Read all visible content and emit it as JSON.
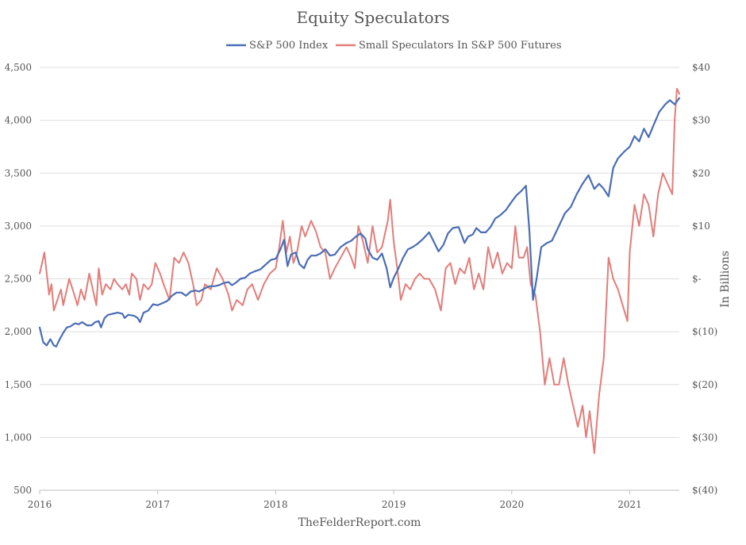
{
  "chart_data": {
    "type": "line",
    "title": "Equity Speculators",
    "source": "TheFelderReport.com",
    "ylabel_right": "In Billions",
    "x_ticks": [
      "2016",
      "2017",
      "2018",
      "2019",
      "2020",
      "2021"
    ],
    "xlim": [
      2016.0,
      2021.42
    ],
    "y_left": {
      "lim": [
        500,
        4500
      ],
      "ticks": [
        500,
        1000,
        1500,
        2000,
        2500,
        3000,
        3500,
        4000,
        4500
      ],
      "tick_labels": [
        "500",
        "1,000",
        "1,500",
        "2,000",
        "2,500",
        "3,000",
        "3,500",
        "4,000",
        "4,500"
      ]
    },
    "y_right": {
      "lim": [
        -40,
        40
      ],
      "ticks": [
        -40,
        -30,
        -20,
        -10,
        0,
        10,
        20,
        30,
        40
      ],
      "tick_labels": [
        "$(40)",
        "$(30)",
        "$(20)",
        "$(10)",
        "$-",
        "$10",
        "$20",
        "$30",
        "$40"
      ]
    },
    "gridlines": true,
    "legend_position": "top-center",
    "series": [
      {
        "name": "S&P 500 Index",
        "axis": "left",
        "color": "#4a6db5",
        "points": [
          [
            2016.0,
            2040
          ],
          [
            2016.03,
            1900
          ],
          [
            2016.06,
            1870
          ],
          [
            2016.09,
            1930
          ],
          [
            2016.12,
            1870
          ],
          [
            2016.14,
            1860
          ],
          [
            2016.17,
            1930
          ],
          [
            2016.2,
            1990
          ],
          [
            2016.23,
            2040
          ],
          [
            2016.26,
            2050
          ],
          [
            2016.3,
            2080
          ],
          [
            2016.33,
            2070
          ],
          [
            2016.36,
            2090
          ],
          [
            2016.4,
            2060
          ],
          [
            2016.44,
            2060
          ],
          [
            2016.47,
            2090
          ],
          [
            2016.5,
            2100
          ],
          [
            2016.52,
            2040
          ],
          [
            2016.55,
            2130
          ],
          [
            2016.58,
            2160
          ],
          [
            2016.62,
            2170
          ],
          [
            2016.66,
            2180
          ],
          [
            2016.7,
            2170
          ],
          [
            2016.72,
            2130
          ],
          [
            2016.75,
            2160
          ],
          [
            2016.8,
            2150
          ],
          [
            2016.83,
            2130
          ],
          [
            2016.85,
            2090
          ],
          [
            2016.88,
            2180
          ],
          [
            2016.92,
            2200
          ],
          [
            2016.96,
            2260
          ],
          [
            2017.0,
            2250
          ],
          [
            2017.04,
            2270
          ],
          [
            2017.08,
            2290
          ],
          [
            2017.12,
            2340
          ],
          [
            2017.16,
            2370
          ],
          [
            2017.2,
            2370
          ],
          [
            2017.24,
            2340
          ],
          [
            2017.28,
            2380
          ],
          [
            2017.32,
            2390
          ],
          [
            2017.35,
            2380
          ],
          [
            2017.4,
            2410
          ],
          [
            2017.44,
            2430
          ],
          [
            2017.48,
            2430
          ],
          [
            2017.52,
            2440
          ],
          [
            2017.56,
            2460
          ],
          [
            2017.6,
            2470
          ],
          [
            2017.63,
            2440
          ],
          [
            2017.67,
            2470
          ],
          [
            2017.7,
            2500
          ],
          [
            2017.74,
            2510
          ],
          [
            2017.78,
            2550
          ],
          [
            2017.82,
            2570
          ],
          [
            2017.87,
            2590
          ],
          [
            2017.92,
            2640
          ],
          [
            2017.96,
            2680
          ],
          [
            2018.0,
            2690
          ],
          [
            2018.04,
            2780
          ],
          [
            2018.07,
            2870
          ],
          [
            2018.1,
            2620
          ],
          [
            2018.13,
            2730
          ],
          [
            2018.17,
            2750
          ],
          [
            2018.2,
            2640
          ],
          [
            2018.24,
            2600
          ],
          [
            2018.27,
            2680
          ],
          [
            2018.3,
            2720
          ],
          [
            2018.34,
            2720
          ],
          [
            2018.38,
            2740
          ],
          [
            2018.42,
            2780
          ],
          [
            2018.46,
            2720
          ],
          [
            2018.5,
            2730
          ],
          [
            2018.55,
            2800
          ],
          [
            2018.6,
            2840
          ],
          [
            2018.64,
            2860
          ],
          [
            2018.68,
            2900
          ],
          [
            2018.72,
            2930
          ],
          [
            2018.76,
            2880
          ],
          [
            2018.78,
            2780
          ],
          [
            2018.82,
            2700
          ],
          [
            2018.86,
            2680
          ],
          [
            2018.9,
            2740
          ],
          [
            2018.94,
            2600
          ],
          [
            2018.97,
            2420
          ],
          [
            2019.0,
            2510
          ],
          [
            2019.04,
            2600
          ],
          [
            2019.08,
            2700
          ],
          [
            2019.12,
            2780
          ],
          [
            2019.16,
            2800
          ],
          [
            2019.2,
            2830
          ],
          [
            2019.25,
            2880
          ],
          [
            2019.3,
            2940
          ],
          [
            2019.34,
            2850
          ],
          [
            2019.38,
            2760
          ],
          [
            2019.42,
            2820
          ],
          [
            2019.46,
            2930
          ],
          [
            2019.5,
            2980
          ],
          [
            2019.55,
            2990
          ],
          [
            2019.6,
            2840
          ],
          [
            2019.63,
            2900
          ],
          [
            2019.67,
            2920
          ],
          [
            2019.7,
            2980
          ],
          [
            2019.74,
            2940
          ],
          [
            2019.78,
            2940
          ],
          [
            2019.82,
            2990
          ],
          [
            2019.86,
            3070
          ],
          [
            2019.9,
            3100
          ],
          [
            2019.95,
            3150
          ],
          [
            2020.0,
            3230
          ],
          [
            2020.04,
            3290
          ],
          [
            2020.08,
            3330
          ],
          [
            2020.12,
            3380
          ],
          [
            2020.15,
            2950
          ],
          [
            2020.18,
            2300
          ],
          [
            2020.21,
            2500
          ],
          [
            2020.25,
            2800
          ],
          [
            2020.3,
            2840
          ],
          [
            2020.34,
            2860
          ],
          [
            2020.4,
            3000
          ],
          [
            2020.45,
            3120
          ],
          [
            2020.5,
            3180
          ],
          [
            2020.55,
            3300
          ],
          [
            2020.6,
            3400
          ],
          [
            2020.65,
            3480
          ],
          [
            2020.7,
            3350
          ],
          [
            2020.74,
            3400
          ],
          [
            2020.78,
            3350
          ],
          [
            2020.82,
            3280
          ],
          [
            2020.86,
            3550
          ],
          [
            2020.9,
            3640
          ],
          [
            2020.95,
            3700
          ],
          [
            2021.0,
            3750
          ],
          [
            2021.04,
            3850
          ],
          [
            2021.08,
            3800
          ],
          [
            2021.12,
            3920
          ],
          [
            2021.16,
            3840
          ],
          [
            2021.2,
            3950
          ],
          [
            2021.25,
            4080
          ],
          [
            2021.3,
            4150
          ],
          [
            2021.34,
            4190
          ],
          [
            2021.38,
            4150
          ],
          [
            2021.42,
            4210
          ]
        ]
      },
      {
        "name": "Small Speculators In S&P 500 Futures",
        "axis": "right",
        "color": "#e27d7a",
        "points": [
          [
            2016.0,
            1
          ],
          [
            2016.02,
            3
          ],
          [
            2016.04,
            5
          ],
          [
            2016.06,
            1
          ],
          [
            2016.08,
            -3
          ],
          [
            2016.1,
            -1
          ],
          [
            2016.12,
            -6
          ],
          [
            2016.15,
            -4
          ],
          [
            2016.18,
            -2
          ],
          [
            2016.2,
            -5
          ],
          [
            2016.22,
            -3
          ],
          [
            2016.25,
            0
          ],
          [
            2016.28,
            -2
          ],
          [
            2016.32,
            -5
          ],
          [
            2016.35,
            -2
          ],
          [
            2016.38,
            -4
          ],
          [
            2016.42,
            1
          ],
          [
            2016.46,
            -3
          ],
          [
            2016.48,
            -5
          ],
          [
            2016.5,
            2
          ],
          [
            2016.53,
            -3
          ],
          [
            2016.56,
            -1
          ],
          [
            2016.6,
            -2
          ],
          [
            2016.63,
            0
          ],
          [
            2016.66,
            -1
          ],
          [
            2016.7,
            -2
          ],
          [
            2016.73,
            -1
          ],
          [
            2016.76,
            -3
          ],
          [
            2016.78,
            1
          ],
          [
            2016.82,
            0
          ],
          [
            2016.85,
            -4
          ],
          [
            2016.88,
            -1
          ],
          [
            2016.92,
            -2
          ],
          [
            2016.95,
            -1
          ],
          [
            2016.98,
            3
          ],
          [
            2017.02,
            1
          ],
          [
            2017.05,
            -1
          ],
          [
            2017.1,
            -4
          ],
          [
            2017.14,
            4
          ],
          [
            2017.18,
            3
          ],
          [
            2017.22,
            5
          ],
          [
            2017.26,
            3
          ],
          [
            2017.3,
            -1
          ],
          [
            2017.33,
            -5
          ],
          [
            2017.37,
            -4
          ],
          [
            2017.4,
            -1
          ],
          [
            2017.45,
            -2
          ],
          [
            2017.5,
            2
          ],
          [
            2017.55,
            0
          ],
          [
            2017.6,
            -3
          ],
          [
            2017.63,
            -6
          ],
          [
            2017.67,
            -4
          ],
          [
            2017.72,
            -5
          ],
          [
            2017.76,
            -2
          ],
          [
            2017.8,
            -1
          ],
          [
            2017.85,
            -4
          ],
          [
            2017.9,
            -1
          ],
          [
            2017.95,
            1
          ],
          [
            2018.0,
            2
          ],
          [
            2018.03,
            6
          ],
          [
            2018.06,
            11
          ],
          [
            2018.09,
            5
          ],
          [
            2018.12,
            8
          ],
          [
            2018.15,
            3
          ],
          [
            2018.18,
            5
          ],
          [
            2018.22,
            10
          ],
          [
            2018.25,
            8
          ],
          [
            2018.3,
            11
          ],
          [
            2018.34,
            9
          ],
          [
            2018.38,
            6
          ],
          [
            2018.42,
            5
          ],
          [
            2018.46,
            0
          ],
          [
            2018.5,
            2
          ],
          [
            2018.55,
            4
          ],
          [
            2018.6,
            6
          ],
          [
            2018.64,
            4
          ],
          [
            2018.67,
            2
          ],
          [
            2018.7,
            10
          ],
          [
            2018.74,
            7
          ],
          [
            2018.78,
            3
          ],
          [
            2018.82,
            10
          ],
          [
            2018.86,
            5
          ],
          [
            2018.9,
            6
          ],
          [
            2018.95,
            11
          ],
          [
            2018.97,
            15
          ],
          [
            2019.0,
            7
          ],
          [
            2019.03,
            2
          ],
          [
            2019.06,
            -4
          ],
          [
            2019.1,
            -1
          ],
          [
            2019.14,
            -2
          ],
          [
            2019.18,
            0
          ],
          [
            2019.22,
            1
          ],
          [
            2019.26,
            0
          ],
          [
            2019.3,
            0
          ],
          [
            2019.35,
            -2
          ],
          [
            2019.4,
            -6
          ],
          [
            2019.44,
            2
          ],
          [
            2019.48,
            3
          ],
          [
            2019.52,
            -1
          ],
          [
            2019.56,
            2
          ],
          [
            2019.6,
            1
          ],
          [
            2019.64,
            4
          ],
          [
            2019.68,
            -2
          ],
          [
            2019.72,
            1
          ],
          [
            2019.76,
            -2
          ],
          [
            2019.8,
            6
          ],
          [
            2019.84,
            2
          ],
          [
            2019.88,
            5
          ],
          [
            2019.92,
            1
          ],
          [
            2019.96,
            3
          ],
          [
            2020.0,
            2
          ],
          [
            2020.03,
            10
          ],
          [
            2020.06,
            4
          ],
          [
            2020.1,
            4
          ],
          [
            2020.13,
            6
          ],
          [
            2020.16,
            -1
          ],
          [
            2020.2,
            -3
          ],
          [
            2020.24,
            -10
          ],
          [
            2020.28,
            -20
          ],
          [
            2020.32,
            -15
          ],
          [
            2020.36,
            -20
          ],
          [
            2020.4,
            -20
          ],
          [
            2020.44,
            -15
          ],
          [
            2020.48,
            -20
          ],
          [
            2020.52,
            -24
          ],
          [
            2020.56,
            -28
          ],
          [
            2020.6,
            -24
          ],
          [
            2020.63,
            -30
          ],
          [
            2020.66,
            -25
          ],
          [
            2020.7,
            -33
          ],
          [
            2020.74,
            -22
          ],
          [
            2020.78,
            -15
          ],
          [
            2020.82,
            4
          ],
          [
            2020.86,
            0
          ],
          [
            2020.9,
            -2
          ],
          [
            2020.94,
            -5
          ],
          [
            2020.98,
            -8
          ],
          [
            2021.0,
            5
          ],
          [
            2021.04,
            14
          ],
          [
            2021.08,
            10
          ],
          [
            2021.12,
            16
          ],
          [
            2021.16,
            14
          ],
          [
            2021.2,
            8
          ],
          [
            2021.24,
            16
          ],
          [
            2021.28,
            20
          ],
          [
            2021.32,
            18
          ],
          [
            2021.36,
            16
          ],
          [
            2021.38,
            30
          ],
          [
            2021.4,
            36
          ],
          [
            2021.42,
            35
          ]
        ]
      }
    ]
  }
}
